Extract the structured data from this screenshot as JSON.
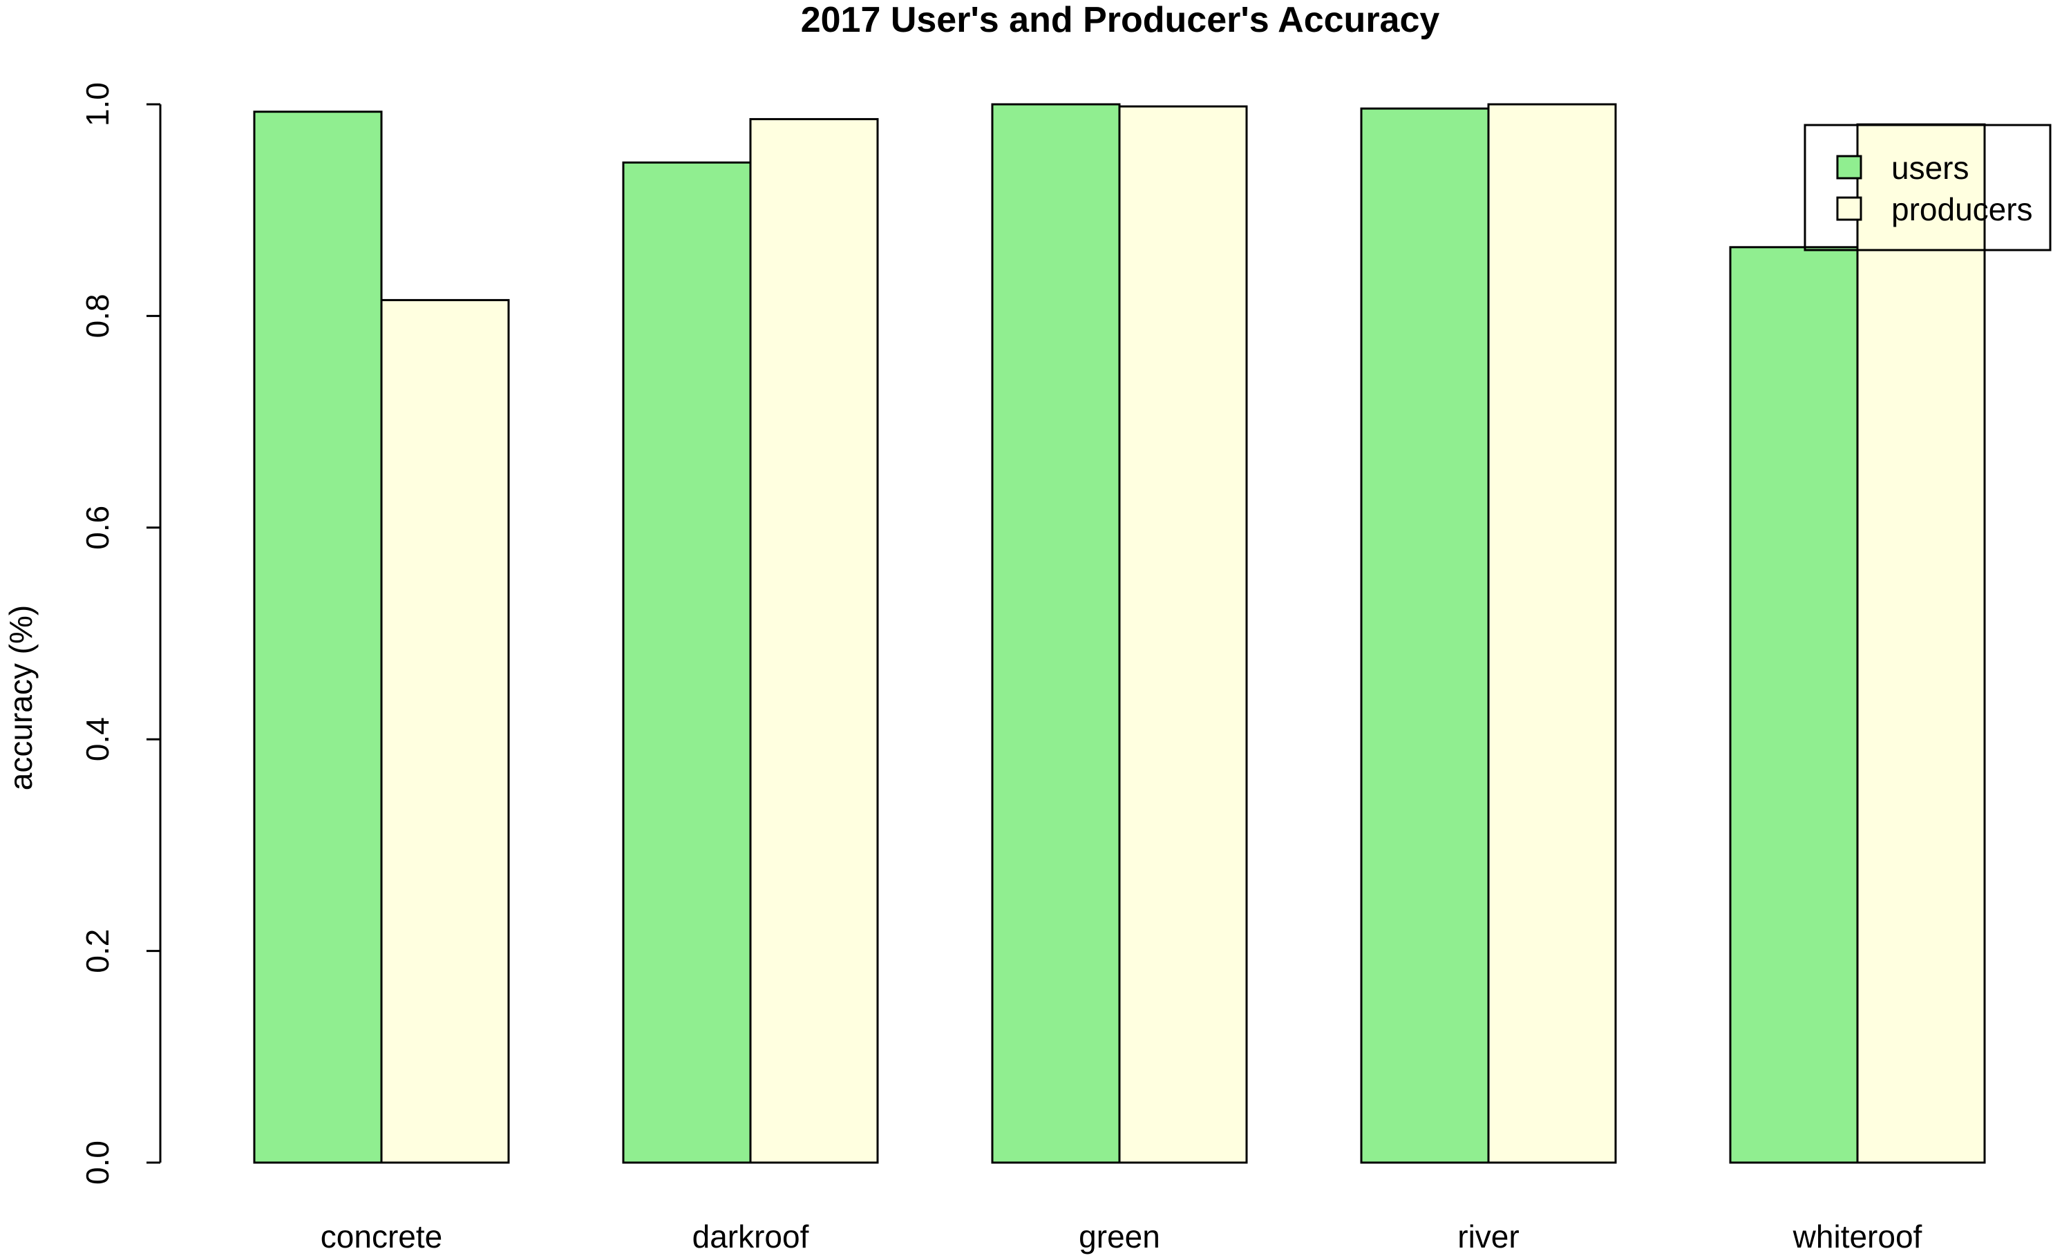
{
  "chart_data": {
    "type": "bar",
    "title": "2017 User's and Producer's Accuracy",
    "xlabel": "",
    "ylabel": "accuracy (%)",
    "ylim": [
      0,
      1
    ],
    "yticks": [
      0.0,
      0.2,
      0.4,
      0.6,
      0.8,
      1.0
    ],
    "ytick_labels": [
      "0.0",
      "0.2",
      "0.4",
      "0.6",
      "0.8",
      "1.0"
    ],
    "categories": [
      "concrete",
      "darkroof",
      "green",
      "river",
      "whiteroof"
    ],
    "series": [
      {
        "name": "users",
        "color": "#90EE90",
        "values": [
          0.993,
          0.945,
          1.0,
          0.996,
          0.865
        ]
      },
      {
        "name": "producers",
        "color": "#FFFFE0",
        "values": [
          0.815,
          0.986,
          0.998,
          1.0,
          0.981
        ]
      }
    ],
    "grid": false,
    "legend": "top-right"
  }
}
